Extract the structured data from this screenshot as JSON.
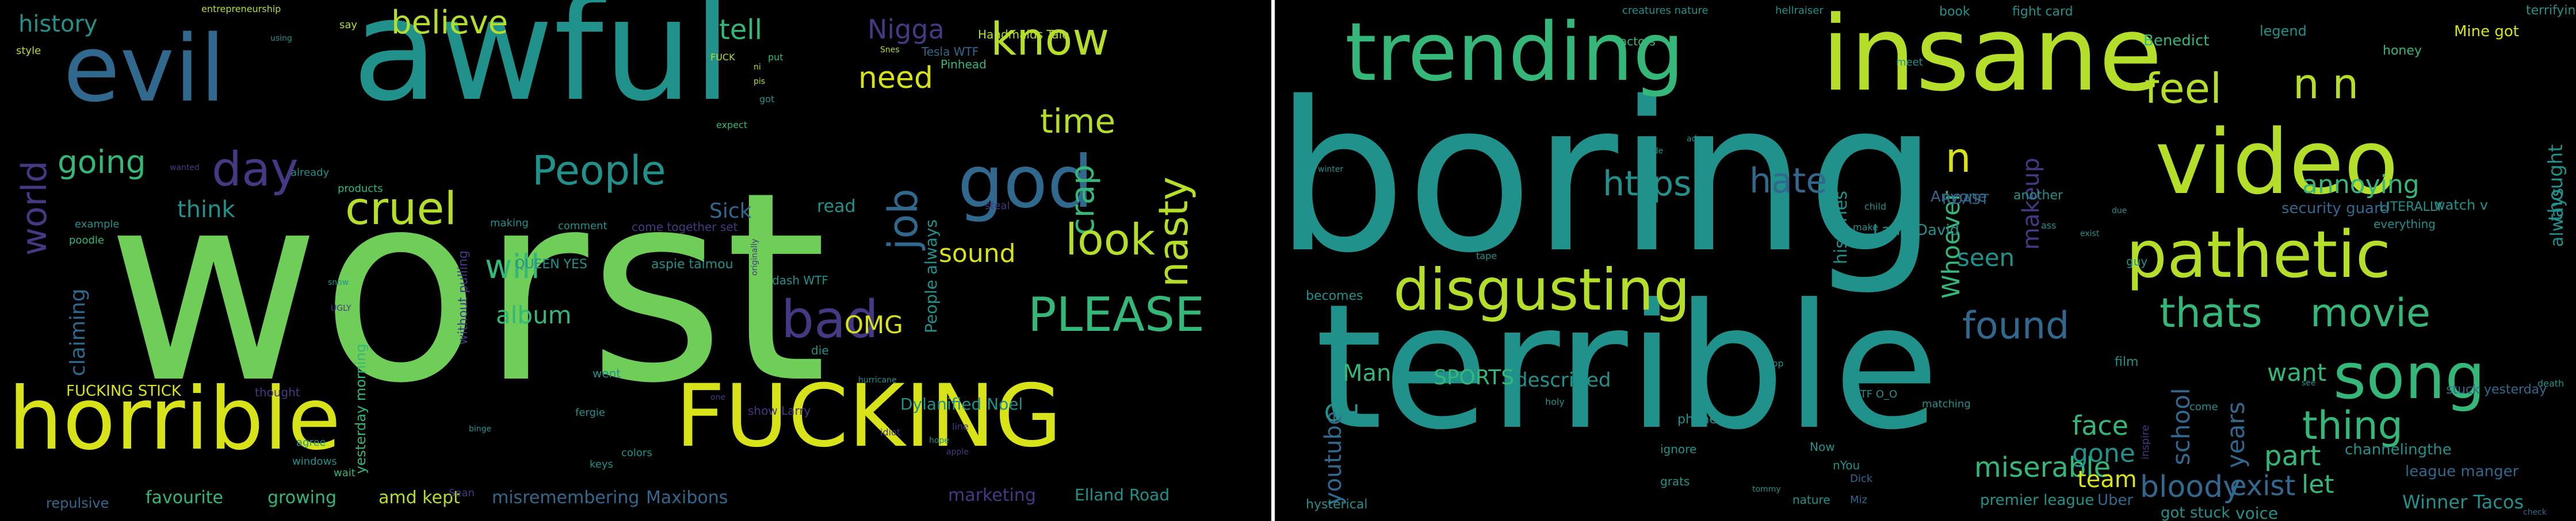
{
  "palette": {
    "background": "#000000",
    "yellow": "#d8e219",
    "lime": "#b5de2b",
    "green": "#6ece58",
    "seafoam": "#35b779",
    "teal": "#21918c",
    "steel": "#31688e",
    "indigo": "#443a83",
    "deep": "#440154"
  },
  "left_cloud": {
    "words": [
      {
        "text": "worst",
        "color": "#6ece58"
      },
      {
        "text": "awful",
        "color": "#21918c"
      },
      {
        "text": "evil",
        "color": "#31688e"
      },
      {
        "text": "horrible",
        "color": "#d8e219"
      },
      {
        "text": "FUCKING",
        "color": "#d8e219"
      },
      {
        "text": "cruel",
        "color": "#b5de2b"
      },
      {
        "text": "day",
        "color": "#443a83"
      },
      {
        "text": "god",
        "color": "#31688e"
      },
      {
        "text": "bad",
        "color": "#443a83"
      },
      {
        "text": "PLEASE",
        "color": "#35b779"
      },
      {
        "text": "know",
        "color": "#b5de2b"
      },
      {
        "text": "nasty",
        "color": "#b5de2b"
      },
      {
        "text": "crap",
        "color": "#35b779"
      },
      {
        "text": "job",
        "color": "#31688e"
      },
      {
        "text": "look",
        "color": "#b5de2b"
      },
      {
        "text": "time",
        "color": "#b5de2b"
      },
      {
        "text": "need",
        "color": "#d8e219"
      },
      {
        "text": "People",
        "color": "#21918c"
      },
      {
        "text": "world",
        "color": "#443a83"
      },
      {
        "text": "going",
        "color": "#35b779"
      },
      {
        "text": "believe",
        "color": "#b5de2b"
      },
      {
        "text": "history",
        "color": "#21918c"
      },
      {
        "text": "tell",
        "color": "#35b779"
      },
      {
        "text": "Nigga",
        "color": "#443a83"
      },
      {
        "text": "think",
        "color": "#21918c"
      },
      {
        "text": "will",
        "color": "#35b779"
      },
      {
        "text": "sound",
        "color": "#d8e219"
      },
      {
        "text": "OMG",
        "color": "#d8e219"
      },
      {
        "text": "album",
        "color": "#35b779"
      },
      {
        "text": "claiming",
        "color": "#31688e"
      },
      {
        "text": "FUCKING STICK",
        "color": "#d8e219"
      },
      {
        "text": "Sick",
        "color": "#31688e"
      },
      {
        "text": "read",
        "color": "#21918c"
      },
      {
        "text": "favourite",
        "color": "#35b779"
      },
      {
        "text": "growing",
        "color": "#35b779"
      },
      {
        "text": "amd kept",
        "color": "#b5de2b"
      },
      {
        "text": "misremembering",
        "color": "#31688e"
      },
      {
        "text": "Maxibons",
        "color": "#31688e"
      },
      {
        "text": "marketing",
        "color": "#443a83"
      },
      {
        "text": "Elland Road",
        "color": "#21918c"
      },
      {
        "text": "Dylanified Noel",
        "color": "#21918c"
      },
      {
        "text": "People always",
        "color": "#21918c"
      },
      {
        "text": "repulsive",
        "color": "#31688e"
      },
      {
        "text": "Handmaids Tale",
        "color": "#b5de2b"
      },
      {
        "text": "Tesla WTF",
        "color": "#31688e"
      },
      {
        "text": "Pinhead",
        "color": "#35b779"
      },
      {
        "text": "QUEEN YES",
        "color": "#21918c"
      },
      {
        "text": "aspie taimou",
        "color": "#21918c"
      },
      {
        "text": "dash WTF",
        "color": "#21918c"
      },
      {
        "text": "yesterday morning",
        "color": "#35b779"
      },
      {
        "text": "without pulling",
        "color": "#443a83"
      },
      {
        "text": "come together set",
        "color": "#443a83"
      },
      {
        "text": "comment",
        "color": "#21918c"
      },
      {
        "text": "making",
        "color": "#21918c"
      },
      {
        "text": "example",
        "color": "#21918c"
      },
      {
        "text": "poodle",
        "color": "#35b779"
      },
      {
        "text": "products",
        "color": "#35b779"
      },
      {
        "text": "already",
        "color": "#21918c"
      },
      {
        "text": "agree",
        "color": "#21918c"
      },
      {
        "text": "windows",
        "color": "#21918c"
      },
      {
        "text": "Sean",
        "color": "#443a83"
      },
      {
        "text": "wait",
        "color": "#35b779"
      },
      {
        "text": "keys",
        "color": "#21918c"
      },
      {
        "text": "colors",
        "color": "#21918c"
      },
      {
        "text": "steal",
        "color": "#443a83"
      },
      {
        "text": "die",
        "color": "#21918c"
      },
      {
        "text": "show Larry",
        "color": "#443a83"
      },
      {
        "text": "went",
        "color": "#21918c"
      },
      {
        "text": "thought",
        "color": "#443a83"
      },
      {
        "text": "fergie",
        "color": "#21918c"
      },
      {
        "text": "entrepreneurship",
        "color": "#b5de2b"
      },
      {
        "text": "say",
        "color": "#b5de2b"
      },
      {
        "text": "style",
        "color": "#b5de2b"
      },
      {
        "text": "FUCK",
        "color": "#b5de2b"
      },
      {
        "text": "expect",
        "color": "#35b779"
      },
      {
        "text": "put",
        "color": "#35b779"
      },
      {
        "text": "hurricane",
        "color": "#21918c"
      },
      {
        "text": "idiot",
        "color": "#443a83"
      },
      {
        "text": "line",
        "color": "#443a83"
      },
      {
        "text": "hope",
        "color": "#21918c"
      },
      {
        "text": "apple",
        "color": "#443a83"
      },
      {
        "text": "got",
        "color": "#21918c"
      },
      {
        "text": "pis",
        "color": "#b5de2b"
      },
      {
        "text": "ni",
        "color": "#b5de2b"
      },
      {
        "text": "wanted",
        "color": "#443a83"
      },
      {
        "text": "using",
        "color": "#21918c"
      },
      {
        "text": "Snes",
        "color": "#b5de2b"
      },
      {
        "text": "UGLY",
        "color": "#443a83"
      },
      {
        "text": "snow",
        "color": "#21918c"
      },
      {
        "text": "one",
        "color": "#443a83"
      },
      {
        "text": "binge",
        "color": "#21918c"
      },
      {
        "text": "originally",
        "color": "#443a83"
      }
    ]
  },
  "right_cloud": {
    "words": [
      {
        "text": "boring",
        "color": "#21918c"
      },
      {
        "text": "terrible",
        "color": "#21918c"
      },
      {
        "text": "insane",
        "color": "#b5de2b"
      },
      {
        "text": "trending",
        "color": "#35b779"
      },
      {
        "text": "video",
        "color": "#b5de2b"
      },
      {
        "text": "pathetic",
        "color": "#b5de2b"
      },
      {
        "text": "disgusting",
        "color": "#b5de2b"
      },
      {
        "text": "song",
        "color": "#35b779"
      },
      {
        "text": "feel",
        "color": "#b5de2b"
      },
      {
        "text": "n n",
        "color": "#b5de2b"
      },
      {
        "text": "hate",
        "color": "#31688e"
      },
      {
        "text": "https",
        "color": "#21918c"
      },
      {
        "text": "movie",
        "color": "#35b779"
      },
      {
        "text": "thats",
        "color": "#35b779"
      },
      {
        "text": "found",
        "color": "#31688e"
      },
      {
        "text": "thing",
        "color": "#35b779"
      },
      {
        "text": "annoying",
        "color": "#35b779"
      },
      {
        "text": "n",
        "color": "#d8e219"
      },
      {
        "text": "makeup",
        "color": "#443a83"
      },
      {
        "text": "Whoever",
        "color": "#35b779"
      },
      {
        "text": "seen",
        "color": "#21918c"
      },
      {
        "text": "want",
        "color": "#35b779"
      },
      {
        "text": "part",
        "color": "#35b779"
      },
      {
        "text": "miserable",
        "color": "#35b779"
      },
      {
        "text": "bloody",
        "color": "#31688e"
      },
      {
        "text": "exist",
        "color": "#31688e"
      },
      {
        "text": "let",
        "color": "#35b779"
      },
      {
        "text": "school",
        "color": "#31688e"
      },
      {
        "text": "years",
        "color": "#31688e"
      },
      {
        "text": "face",
        "color": "#35b779"
      },
      {
        "text": "gone",
        "color": "#21918c"
      },
      {
        "text": "team",
        "color": "#d8e219"
      },
      {
        "text": "youtube",
        "color": "#31688e"
      },
      {
        "text": "OH",
        "color": "#21918c"
      },
      {
        "text": "Man",
        "color": "#35b779"
      },
      {
        "text": "SPORTS",
        "color": "#35b779"
      },
      {
        "text": "described",
        "color": "#21918c"
      },
      {
        "text": "Winner Tacos",
        "color": "#21918c"
      },
      {
        "text": "voice",
        "color": "#21918c"
      },
      {
        "text": "security guard",
        "color": "#31688e"
      },
      {
        "text": "Larry David",
        "color": "#21918c"
      },
      {
        "text": "Anyone",
        "color": "#31688e"
      },
      {
        "text": "ROAST",
        "color": "#31688e"
      },
      {
        "text": "thought",
        "color": "#21918c"
      },
      {
        "text": "always",
        "color": "#21918c"
      },
      {
        "text": "watch v",
        "color": "#21918c"
      },
      {
        "text": "LITERALLY",
        "color": "#21918c"
      },
      {
        "text": "Mine got",
        "color": "#d8e219"
      },
      {
        "text": "honey",
        "color": "#35b779"
      },
      {
        "text": "legend",
        "color": "#21918c"
      },
      {
        "text": "Benedict",
        "color": "#35b779"
      },
      {
        "text": "fight card",
        "color": "#21918c"
      },
      {
        "text": "book",
        "color": "#21918c"
      },
      {
        "text": "hellraiser",
        "color": "#21918c"
      },
      {
        "text": "creatures nature",
        "color": "#21918c"
      },
      {
        "text": "actors",
        "color": "#35b779"
      },
      {
        "text": "meet",
        "color": "#21918c"
      },
      {
        "text": "another",
        "color": "#21918c"
      },
      {
        "text": "film",
        "color": "#21918c"
      },
      {
        "text": "guy",
        "color": "#21918c"
      },
      {
        "text": "histories",
        "color": "#21918c"
      },
      {
        "text": "becomes",
        "color": "#21918c"
      },
      {
        "text": "hysterical",
        "color": "#21918c"
      },
      {
        "text": "premier league",
        "color": "#21918c"
      },
      {
        "text": "Uber",
        "color": "#31688e"
      },
      {
        "text": "got stuck",
        "color": "#21918c"
      },
      {
        "text": "league manger",
        "color": "#31688e"
      },
      {
        "text": "channelingthe",
        "color": "#21918c"
      },
      {
        "text": "stuck yesterday",
        "color": "#31688e"
      },
      {
        "text": "everything",
        "color": "#21918c"
      },
      {
        "text": "terrifying",
        "color": "#21918c"
      },
      {
        "text": "phone",
        "color": "#21918c"
      },
      {
        "text": "ignore",
        "color": "#21918c"
      },
      {
        "text": "nature",
        "color": "#21918c"
      },
      {
        "text": "grats",
        "color": "#21918c"
      },
      {
        "text": "Now",
        "color": "#21918c"
      },
      {
        "text": "nYou",
        "color": "#21918c"
      },
      {
        "text": "WTF O_O",
        "color": "#21918c"
      },
      {
        "text": "matching",
        "color": "#21918c"
      },
      {
        "text": "make",
        "color": "#21918c"
      },
      {
        "text": "child",
        "color": "#21918c"
      },
      {
        "text": "tape",
        "color": "#21918c"
      },
      {
        "text": "ass",
        "color": "#21918c"
      },
      {
        "text": "Dick",
        "color": "#31688e"
      },
      {
        "text": "Miz",
        "color": "#31688e"
      },
      {
        "text": "come",
        "color": "#21918c"
      },
      {
        "text": "stop",
        "color": "#21918c"
      },
      {
        "text": "inspire",
        "color": "#443a83"
      },
      {
        "text": "adore",
        "color": "#21918c"
      },
      {
        "text": "dude",
        "color": "#21918c"
      },
      {
        "text": "winter",
        "color": "#21918c"
      },
      {
        "text": "exist",
        "color": "#21918c"
      },
      {
        "text": "due",
        "color": "#21918c"
      },
      {
        "text": "death",
        "color": "#21918c"
      },
      {
        "text": "check",
        "color": "#31688e"
      },
      {
        "text": "tommy",
        "color": "#21918c"
      },
      {
        "text": "see",
        "color": "#21918c"
      },
      {
        "text": "holy",
        "color": "#21918c"
      }
    ]
  }
}
